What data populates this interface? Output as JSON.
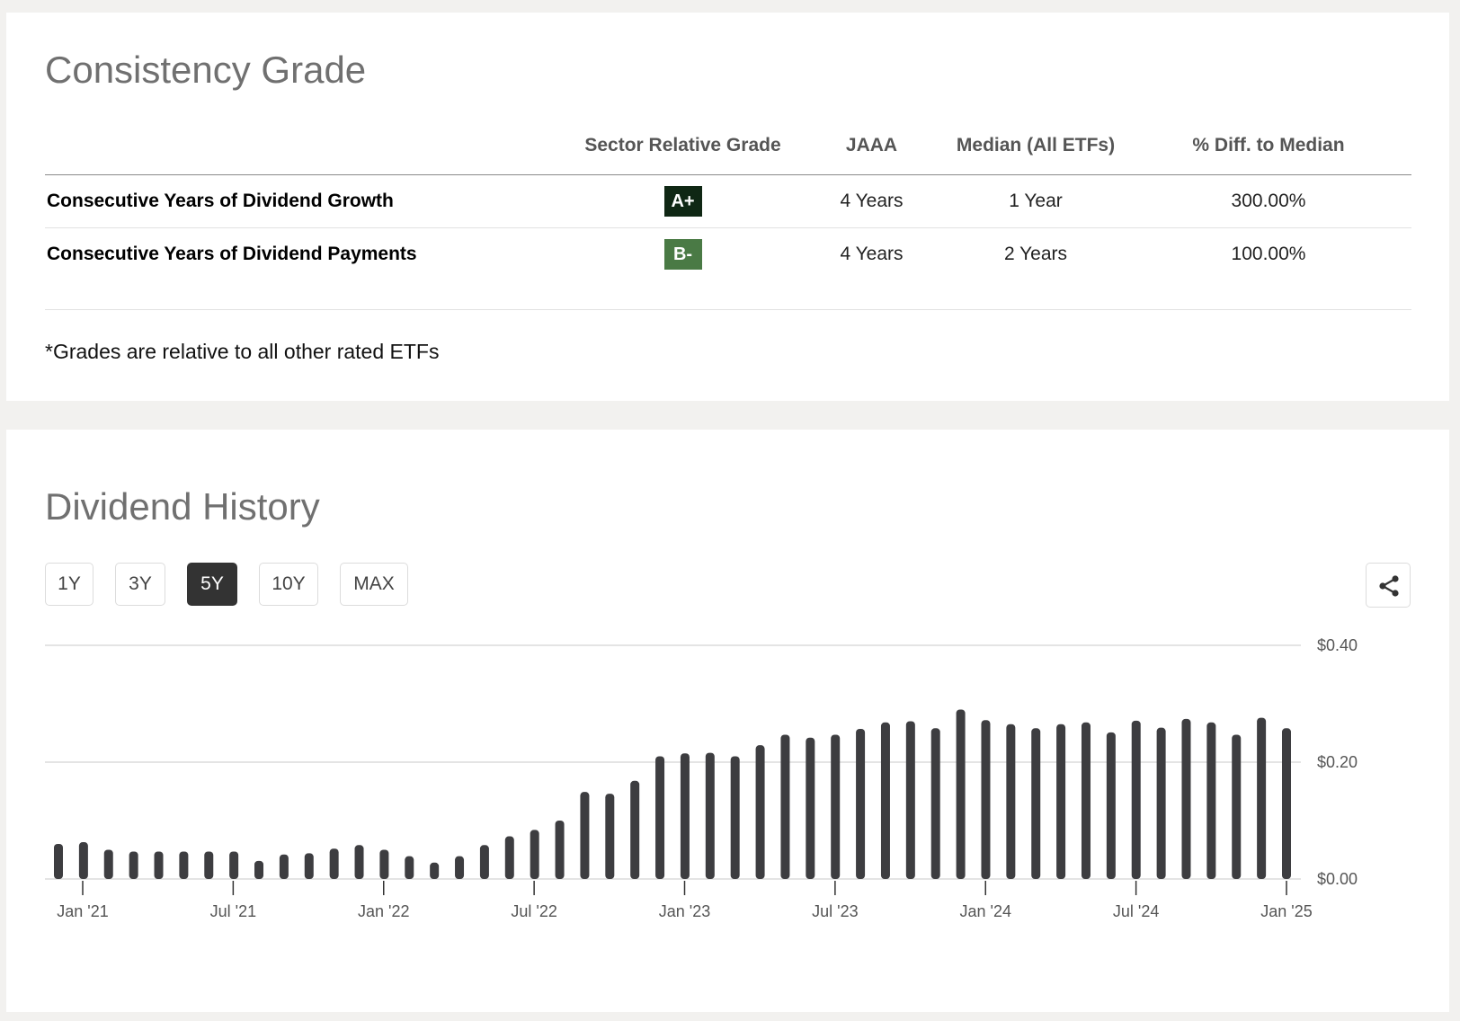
{
  "consistency": {
    "title": "Consistency Grade",
    "headers": [
      "Sector Relative Grade",
      "JAAA",
      "Median (All ETFs)",
      "% Diff. to Median"
    ],
    "rows": [
      {
        "label": "Consecutive Years of Dividend Growth",
        "grade": "A+",
        "value": "4 Years",
        "median": "1 Year",
        "diff": "300.00%"
      },
      {
        "label": "Consecutive Years of Dividend Payments",
        "grade": "B-",
        "value": "4 Years",
        "median": "2 Years",
        "diff": "100.00%"
      }
    ],
    "footnote": "*Grades are relative to all other rated ETFs"
  },
  "colors": {
    "grade_a_plus": "#0f2714",
    "grade_b_minus": "#4a7a45",
    "bar": "#3d3d40",
    "gridline": "#dcdcdc",
    "active_button": "#333333"
  },
  "dividend_history": {
    "title": "Dividend History",
    "ranges": [
      "1Y",
      "3Y",
      "5Y",
      "10Y",
      "MAX"
    ],
    "active_range": "5Y",
    "share_icon": "share-icon"
  },
  "chart_data": {
    "type": "bar",
    "x_tick_labels": [
      "Jan '21",
      "Jul '21",
      "Jan '22",
      "Jul '22",
      "Jan '23",
      "Jul '23",
      "Jan '24",
      "Jul '24",
      "Jan '25"
    ],
    "y_tick_labels": [
      "$0.40",
      "$0.20",
      "$0.00"
    ],
    "y_ticks": [
      0.4,
      0.2,
      0
    ],
    "ylim": [
      0,
      0.4
    ],
    "grid": true,
    "values": [
      0.06,
      0.063,
      0.05,
      0.047,
      0.047,
      0.047,
      0.047,
      0.047,
      0.031,
      0.042,
      0.044,
      0.052,
      0.058,
      0.05,
      0.039,
      0.028,
      0.039,
      0.058,
      0.073,
      0.084,
      0.1,
      0.149,
      0.146,
      0.168,
      0.21,
      0.215,
      0.216,
      0.21,
      0.229,
      0.247,
      0.242,
      0.247,
      0.257,
      0.268,
      0.27,
      0.258,
      0.29,
      0.272,
      0.265,
      0.258,
      0.265,
      0.268,
      0.251,
      0.271,
      0.259,
      0.274,
      0.268,
      0.247,
      0.276,
      0.258
    ]
  }
}
